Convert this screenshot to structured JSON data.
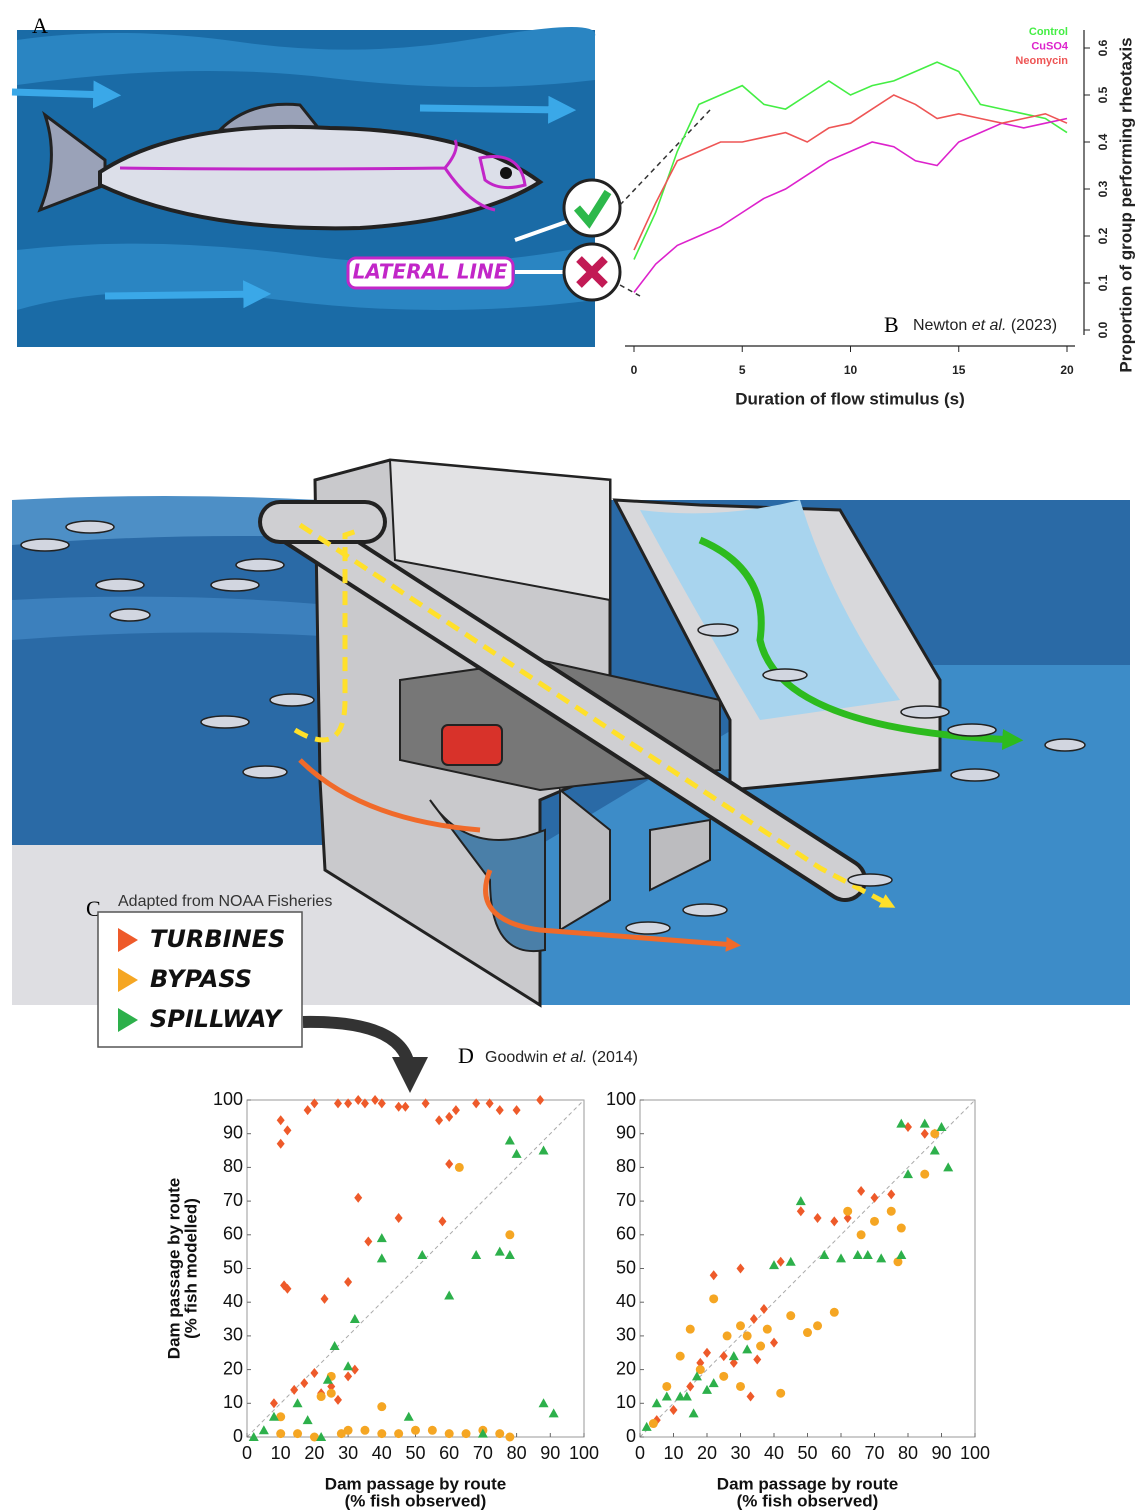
{
  "panels": {
    "a": "A",
    "b": "B",
    "c": "C",
    "d": "D"
  },
  "lateral_line": "LATERAL LINE",
  "citation_b": {
    "author": "Newton",
    "etal": "et al.",
    "year": "(2023)"
  },
  "citation_d": {
    "author": "Goodwin",
    "etal": "et al.",
    "year": "(2014)"
  },
  "dam": {
    "credit": "Adapted from NOAA Fisheries"
  },
  "chart_data": [
    {
      "type": "line",
      "x_label": "Duration of flow stimulus (s)",
      "y_label": "Proportion of group performing rheotaxis",
      "x": [
        0,
        1,
        2,
        3,
        4,
        5,
        6,
        7,
        8,
        9,
        10,
        11,
        12,
        13,
        14,
        15,
        16,
        17,
        18,
        19,
        20
      ],
      "xlim": [
        0,
        20
      ],
      "xticks": [
        0,
        5,
        10,
        15,
        20
      ],
      "ylim": [
        0,
        0.65
      ],
      "yticks": [
        {
          "value": 0,
          "label": "0.0"
        },
        0.1,
        0.2,
        0.3,
        0.4,
        0.5,
        0.6
      ],
      "legend": "top-right",
      "series": [
        {
          "name": "Control",
          "color": "#44ee44",
          "values": [
            0.15,
            0.25,
            0.38,
            0.48,
            0.5,
            0.52,
            0.48,
            0.47,
            0.5,
            0.53,
            0.5,
            0.52,
            0.53,
            0.55,
            0.57,
            0.55,
            0.48,
            0.47,
            0.46,
            0.45,
            0.42
          ]
        },
        {
          "name": "CuSO4",
          "color": "#dd22cc",
          "values": [
            0.08,
            0.14,
            0.18,
            0.2,
            0.22,
            0.25,
            0.28,
            0.3,
            0.33,
            0.36,
            0.38,
            0.4,
            0.39,
            0.36,
            0.35,
            0.4,
            0.42,
            0.44,
            0.43,
            0.44,
            0.45
          ]
        },
        {
          "name": "Neomycin",
          "color": "#ee5555",
          "values": [
            0.17,
            0.27,
            0.36,
            0.38,
            0.4,
            0.4,
            0.41,
            0.42,
            0.4,
            0.43,
            0.44,
            0.47,
            0.5,
            0.48,
            0.45,
            0.46,
            0.45,
            0.44,
            0.45,
            0.46,
            0.44
          ]
        }
      ]
    },
    {
      "type": "scatter",
      "x_label": [
        "Dam passage by route",
        "(% fish observed)"
      ],
      "y_label": [
        "Dam passage by route",
        "(% fish modelled)"
      ],
      "xlim": [
        0,
        100
      ],
      "ylim": [
        0,
        100
      ],
      "xticks": [
        0,
        10,
        20,
        30,
        40,
        50,
        60,
        70,
        80,
        90,
        100
      ],
      "yticks": [
        0,
        10,
        20,
        30,
        40,
        50,
        60,
        70,
        80,
        90,
        100
      ],
      "series": [
        {
          "name": "TURBINES",
          "color": "#ee5a2a",
          "marker": "diamond",
          "x": [
            10,
            10,
            12,
            18,
            20,
            27,
            30,
            33,
            35,
            38,
            40,
            45,
            47,
            53,
            57,
            60,
            62,
            68,
            72,
            75,
            80,
            87,
            11,
            12,
            33,
            36,
            45,
            58,
            60,
            30,
            23,
            14,
            17,
            20,
            22,
            25,
            30,
            32,
            27,
            8
          ],
          "y": [
            94,
            87,
            91,
            97,
            99,
            99,
            99,
            100,
            99,
            100,
            99,
            98,
            98,
            99,
            94,
            95,
            97,
            99,
            99,
            97,
            97,
            100,
            45,
            44,
            71,
            58,
            65,
            64,
            81,
            46,
            41,
            14,
            16,
            19,
            13,
            15,
            18,
            20,
            11,
            10
          ]
        },
        {
          "name": "BYPASS",
          "color": "#f5a623",
          "marker": "circle",
          "x": [
            63,
            78,
            40,
            10,
            22,
            25,
            25,
            30,
            35,
            40,
            45,
            50,
            55,
            60,
            65,
            70,
            75,
            78,
            15,
            20,
            10,
            28
          ],
          "y": [
            80,
            60,
            9,
            6,
            12,
            13,
            18,
            2,
            2,
            1,
            1,
            2,
            2,
            1,
            1,
            2,
            1,
            0,
            1,
            0,
            1,
            1
          ]
        },
        {
          "name": "SPILLWAY",
          "color": "#2db04b",
          "marker": "triangle",
          "x": [
            78,
            80,
            88,
            75,
            78,
            68,
            60,
            52,
            40,
            40,
            32,
            26,
            30,
            24,
            15,
            18,
            8,
            5,
            48,
            70,
            88,
            91,
            2,
            22
          ],
          "y": [
            88,
            84,
            85,
            55,
            54,
            54,
            42,
            54,
            59,
            53,
            35,
            27,
            21,
            17,
            10,
            5,
            6,
            2,
            6,
            1,
            10,
            7,
            0,
            0
          ]
        }
      ]
    },
    {
      "type": "scatter",
      "x_label": [
        "Dam passage by route",
        "(% fish observed)"
      ],
      "xlim": [
        0,
        100
      ],
      "ylim": [
        0,
        100
      ],
      "xticks": [
        0,
        10,
        20,
        30,
        40,
        50,
        60,
        70,
        80,
        90,
        100
      ],
      "yticks": [
        0,
        10,
        20,
        30,
        40,
        50,
        60,
        70,
        80,
        90,
        100
      ],
      "series": [
        {
          "name": "TURBINES",
          "color": "#ee5a2a",
          "marker": "diamond",
          "x": [
            22,
            30,
            34,
            37,
            40,
            33,
            42,
            48,
            53,
            58,
            62,
            66,
            70,
            75,
            80,
            85,
            88,
            15,
            18,
            20,
            25,
            28,
            10,
            5,
            35
          ],
          "y": [
            48,
            50,
            35,
            38,
            28,
            12,
            52,
            67,
            65,
            64,
            65,
            73,
            71,
            72,
            92,
            90,
            90,
            15,
            22,
            25,
            24,
            22,
            8,
            5,
            23
          ]
        },
        {
          "name": "BYPASS",
          "color": "#f5a623",
          "marker": "circle",
          "x": [
            8,
            15,
            22,
            26,
            30,
            32,
            36,
            42,
            45,
            50,
            53,
            58,
            62,
            66,
            70,
            75,
            78,
            77,
            85,
            88,
            12,
            18,
            25,
            30,
            4,
            38
          ],
          "y": [
            15,
            32,
            41,
            30,
            33,
            30,
            27,
            13,
            36,
            31,
            33,
            37,
            67,
            60,
            64,
            67,
            62,
            52,
            78,
            90,
            24,
            20,
            18,
            15,
            4,
            32
          ]
        },
        {
          "name": "SPILLWAY",
          "color": "#2db04b",
          "marker": "triangle",
          "x": [
            2,
            5,
            8,
            12,
            16,
            20,
            22,
            28,
            32,
            40,
            45,
            48,
            55,
            60,
            65,
            68,
            72,
            78,
            80,
            88,
            90,
            92,
            85,
            78,
            14,
            17
          ],
          "y": [
            3,
            10,
            12,
            12,
            7,
            14,
            16,
            24,
            26,
            51,
            52,
            70,
            54,
            53,
            54,
            54,
            53,
            54,
            78,
            85,
            92,
            80,
            93,
            93,
            12,
            18
          ]
        }
      ]
    }
  ]
}
